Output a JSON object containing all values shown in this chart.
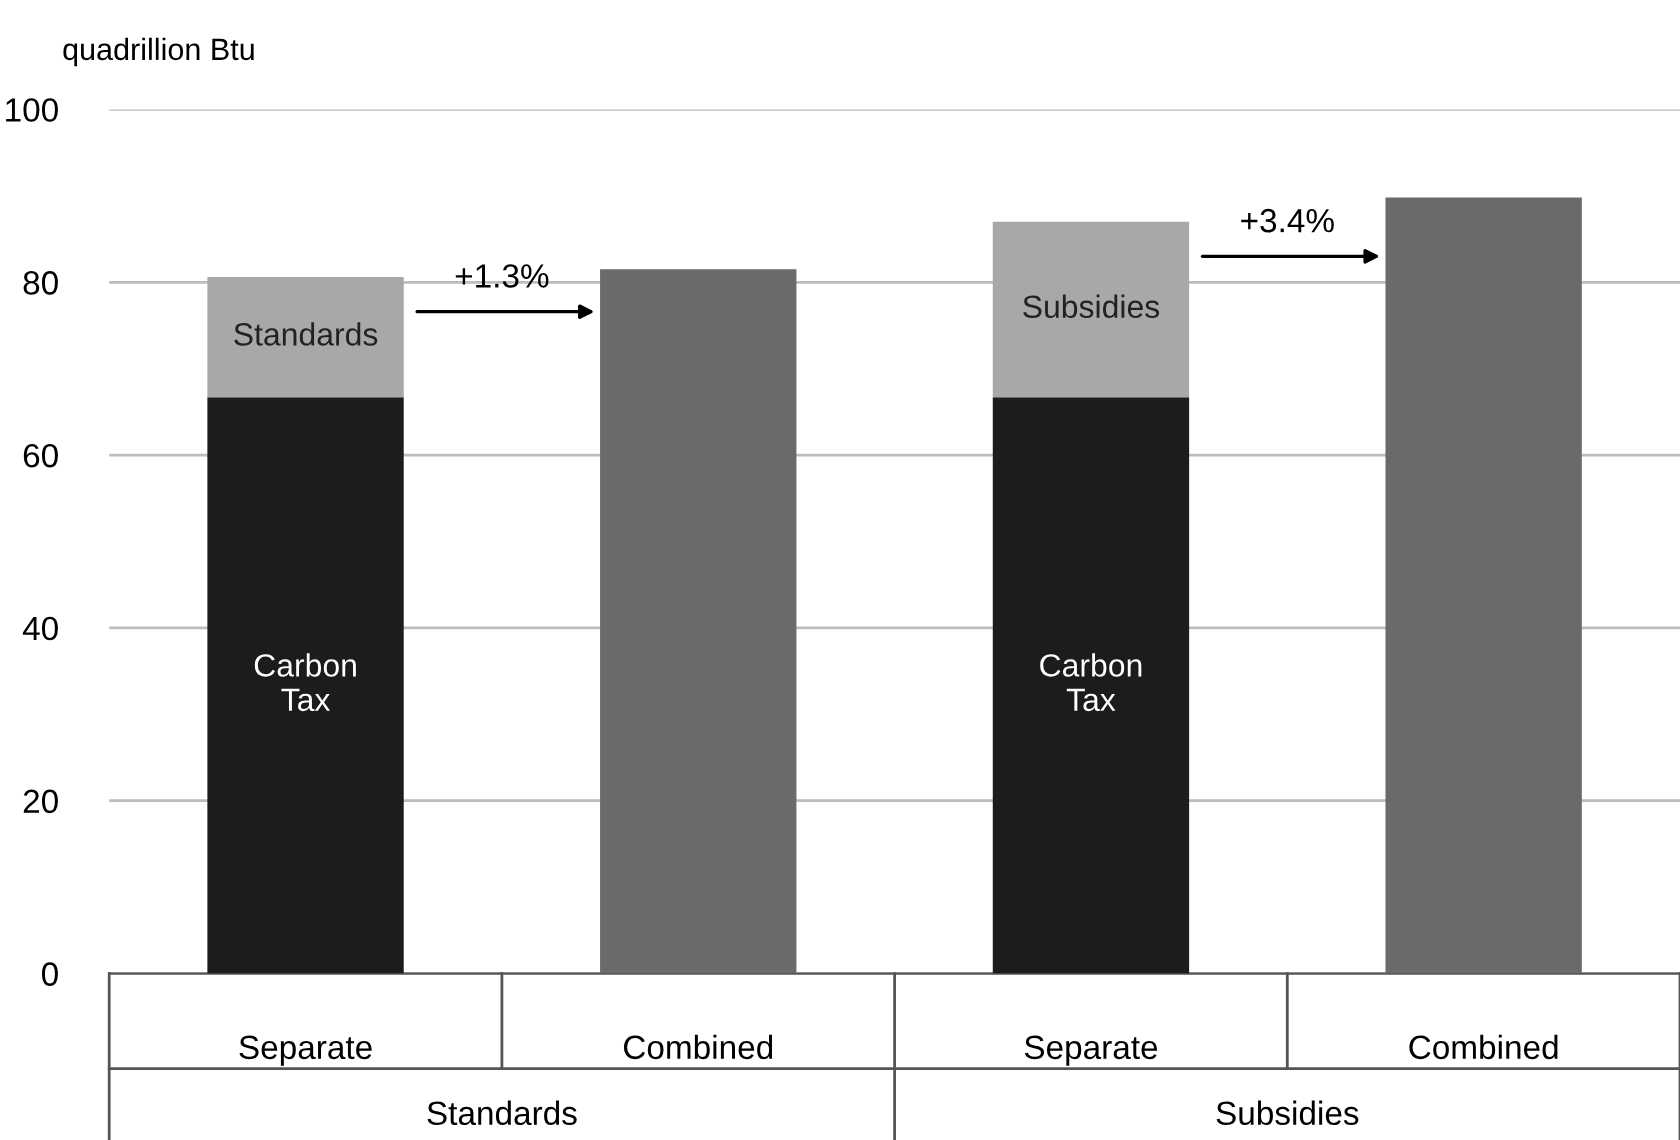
{
  "chart_data": {
    "type": "bar",
    "stacked": true,
    "ylabel": "quadrillion Btu",
    "categories": [
      "Separate",
      "Combined",
      "Separate",
      "Combined"
    ],
    "series": [
      {
        "name": "Carbon Tax",
        "color": "#1c1c1c",
        "values": [
          66.7,
          null,
          66.7,
          null
        ]
      },
      {
        "name": "Standards",
        "color": "#a8a8a8",
        "values": [
          13.9,
          null,
          null,
          null
        ]
      },
      {
        "name": "Subsidies",
        "color": "#a8a8a8",
        "values": [
          null,
          null,
          20.3,
          null
        ]
      },
      {
        "color": "#6a6a6a",
        "values": [
          null,
          81.5,
          null,
          89.8
        ]
      }
    ],
    "annotations": [
      "+1.3%",
      "+3.4%",
      "Standards",
      "Subsidies"
    ],
    "ylim": [
      0,
      100
    ],
    "yticks": [
      0,
      20,
      40,
      60,
      80,
      100
    ],
    "grid": "y"
  }
}
